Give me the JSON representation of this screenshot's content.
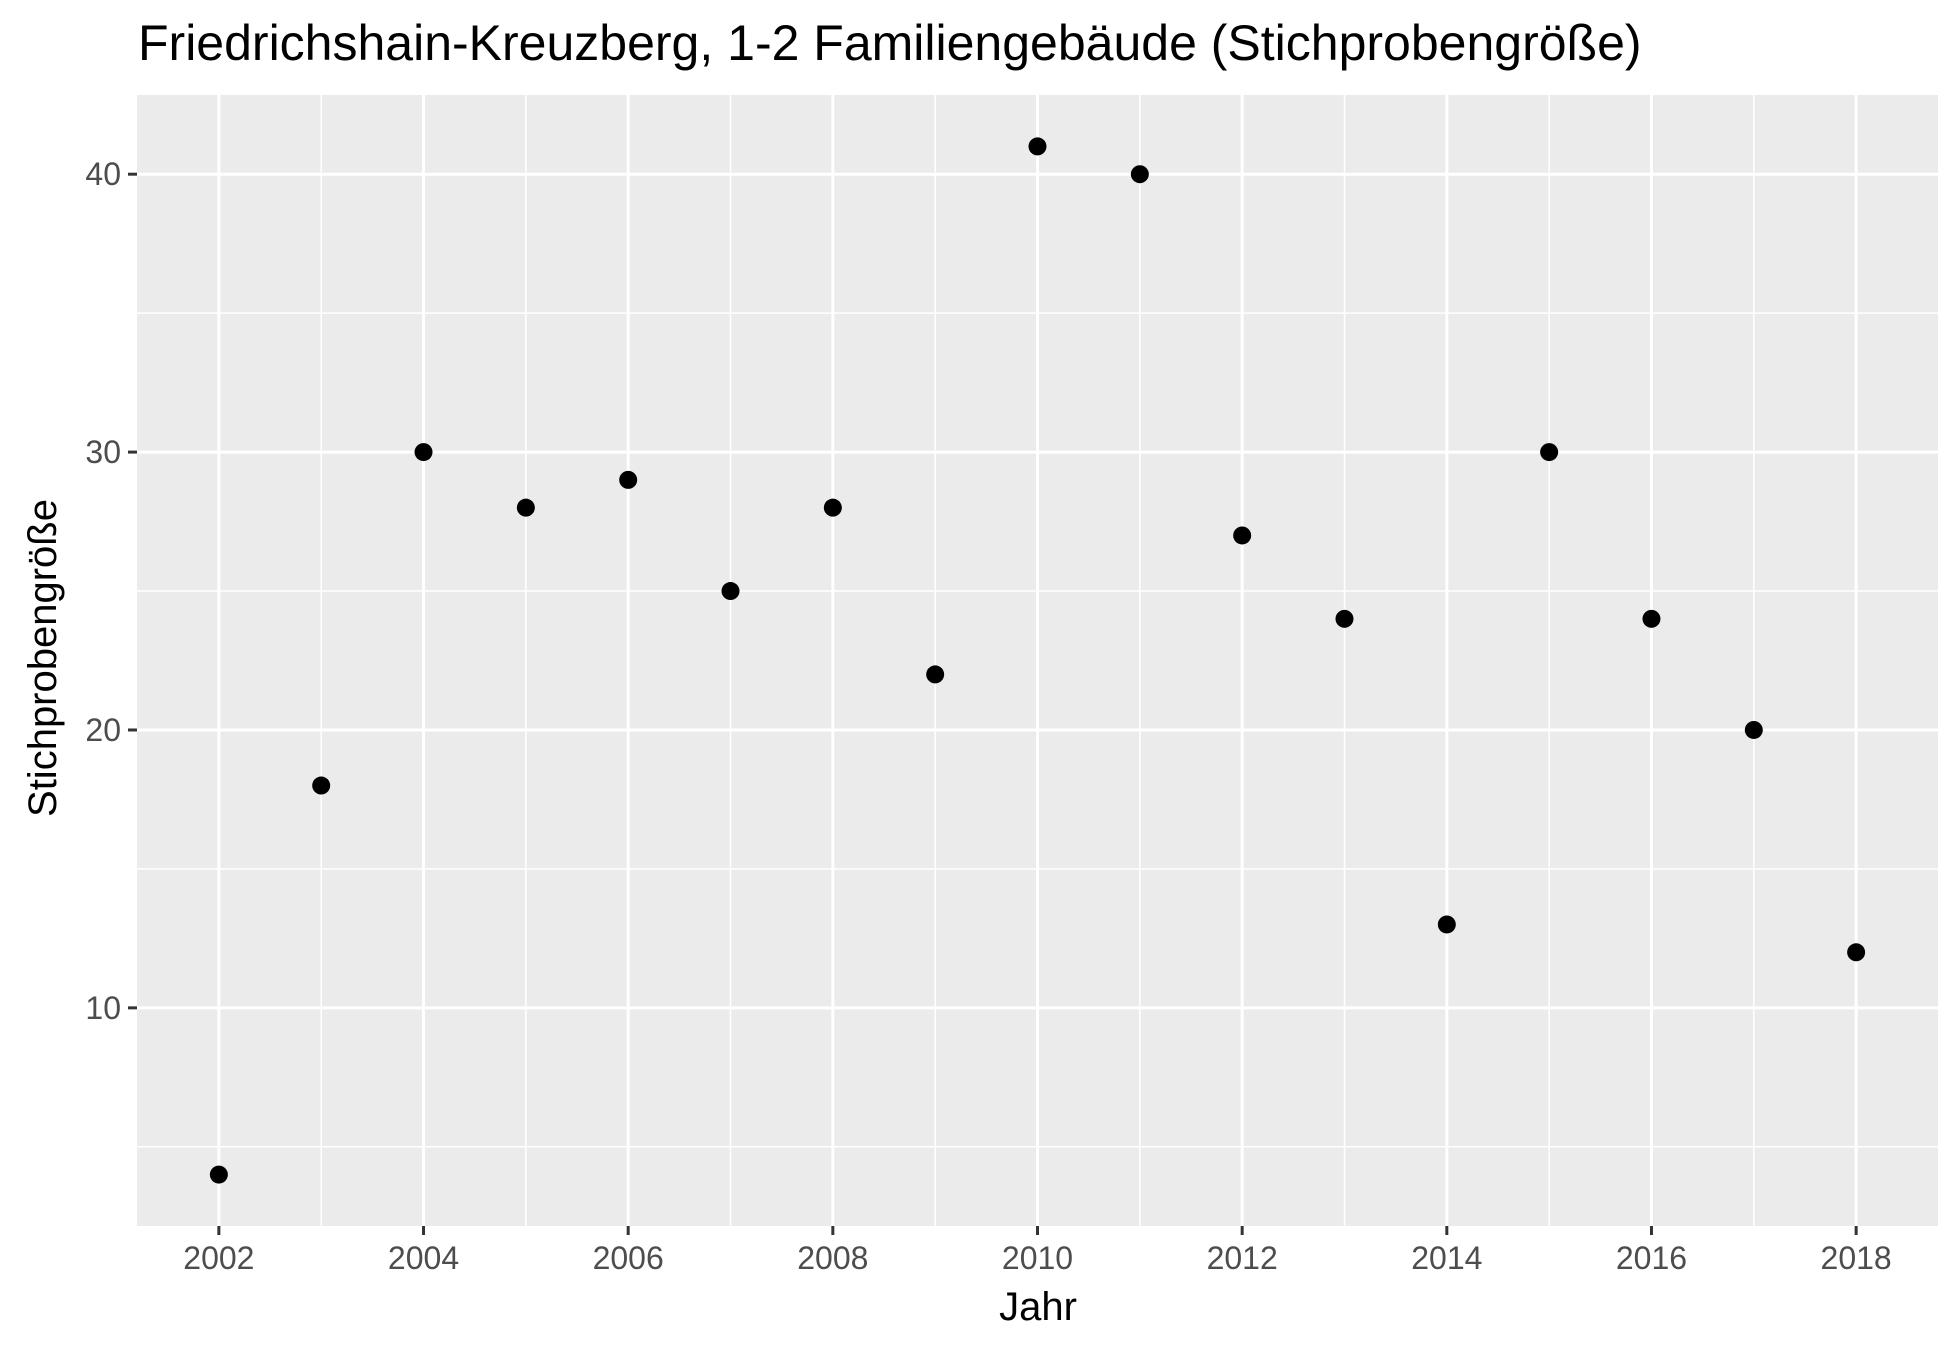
{
  "chart_data": {
    "type": "scatter",
    "title": "Friedrichshain-Kreuzberg, 1-2 Familiengebäude (Stichprobengröße)",
    "xlabel": "Jahr",
    "ylabel": "Stichprobengröße",
    "x": [
      2002,
      2003,
      2004,
      2005,
      2006,
      2007,
      2008,
      2009,
      2010,
      2011,
      2012,
      2013,
      2014,
      2015,
      2016,
      2017,
      2018
    ],
    "y": [
      4,
      18,
      30,
      28,
      29,
      25,
      28,
      22,
      41,
      40,
      27,
      24,
      13,
      30,
      24,
      20,
      12
    ],
    "xlim": [
      2001.2,
      2018.8
    ],
    "ylim": [
      2.15,
      42.85
    ],
    "x_ticks": [
      "2002",
      "2004",
      "2006",
      "2008",
      "2010",
      "2012",
      "2014",
      "2016",
      "2018"
    ],
    "y_ticks": [
      "10",
      "20",
      "30",
      "40"
    ],
    "grid": true,
    "legend": "none",
    "colors": {
      "panel_background": "#ebebeb",
      "grid_line": "#ffffff",
      "point": "#000000",
      "tick_label": "#4d4d4d",
      "axis_tick": "#333333"
    }
  }
}
